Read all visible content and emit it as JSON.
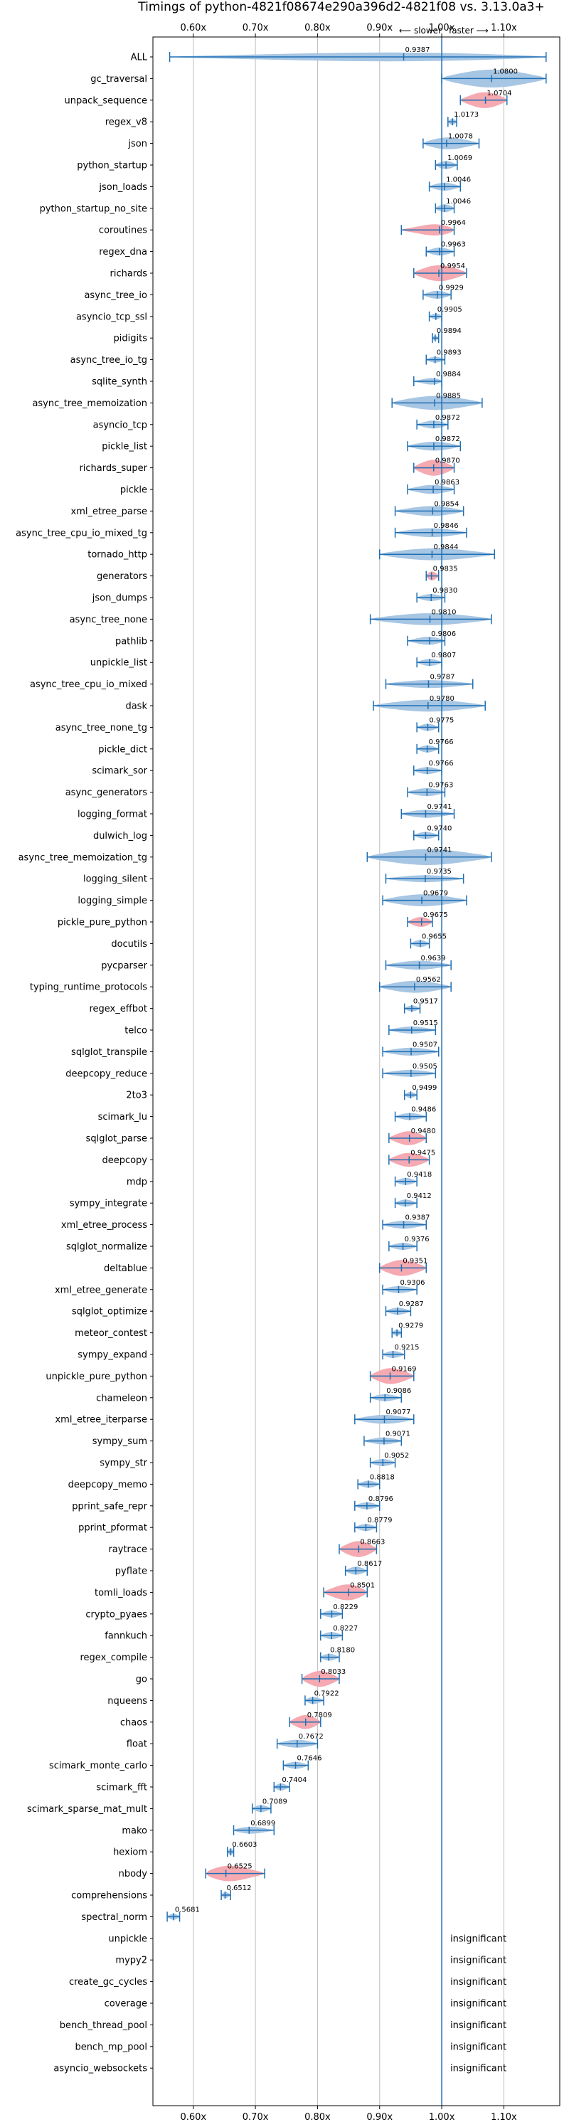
{
  "chart_data": {
    "type": "violin",
    "title": "Timings of python-4821f08674e290a396d2-4821f08 vs. 3.13.0a3+",
    "direction_left": "⟵ slower",
    "direction_right": "faster ⟶",
    "insignificant_label": "insignificant",
    "xlim": [
      0.535,
      1.19
    ],
    "xticks": [
      0.6,
      0.7,
      0.8,
      0.9,
      1.0,
      1.1
    ],
    "xtick_labels": [
      "0.60x",
      "0.70x",
      "0.80x",
      "0.90x",
      "1.00x",
      "1.10x"
    ],
    "colors": {
      "normal": "#a7c6e3",
      "highlight": "#f5a9b1",
      "axis": "#1f6fb4",
      "grid": "#bdbdbd"
    },
    "benchmarks": [
      {
        "name": "ALL",
        "value": 0.9387,
        "label": "0.9387",
        "low": 0.562,
        "high": 1.168,
        "width": 0.45,
        "highlight": false
      },
      {
        "name": "gc_traversal",
        "value": 1.08,
        "label": "1.0800",
        "low": 1.0,
        "high": 1.168,
        "width": 0.9,
        "highlight": false
      },
      {
        "name": "unpack_sequence",
        "value": 1.0704,
        "label": "1.0704",
        "low": 1.03,
        "high": 1.105,
        "width": 0.8,
        "highlight": true
      },
      {
        "name": "regex_v8",
        "value": 1.0173,
        "label": "1.0173",
        "low": 1.01,
        "high": 1.024,
        "width": 0.3,
        "highlight": false
      },
      {
        "name": "json",
        "value": 1.0078,
        "label": "1.0078",
        "low": 0.97,
        "high": 1.06,
        "width": 0.6,
        "highlight": false
      },
      {
        "name": "python_startup",
        "value": 1.0069,
        "label": "1.0069",
        "low": 0.99,
        "high": 1.025,
        "width": 0.4,
        "highlight": false
      },
      {
        "name": "json_loads",
        "value": 1.0046,
        "label": "1.0046",
        "low": 0.98,
        "high": 1.03,
        "width": 0.4,
        "highlight": false
      },
      {
        "name": "python_startup_no_site",
        "value": 1.0046,
        "label": "1.0046",
        "low": 0.99,
        "high": 1.02,
        "width": 0.4,
        "highlight": false
      },
      {
        "name": "coroutines",
        "value": 0.9964,
        "label": "0.9964",
        "low": 0.935,
        "high": 1.02,
        "width": 0.6,
        "highlight": true
      },
      {
        "name": "regex_dna",
        "value": 0.9963,
        "label": "0.9963",
        "low": 0.975,
        "high": 1.02,
        "width": 0.4,
        "highlight": false
      },
      {
        "name": "richards",
        "value": 0.9954,
        "label": "0.9954",
        "low": 0.955,
        "high": 1.04,
        "width": 0.8,
        "highlight": true
      },
      {
        "name": "async_tree_io",
        "value": 0.9929,
        "label": "0.9929",
        "low": 0.97,
        "high": 1.015,
        "width": 0.4,
        "highlight": false
      },
      {
        "name": "asyncio_tcp_ssl",
        "value": 0.9905,
        "label": "0.9905",
        "low": 0.98,
        "high": 1.0,
        "width": 0.3,
        "highlight": false
      },
      {
        "name": "pidigits",
        "value": 0.9894,
        "label": "0.9894",
        "low": 0.985,
        "high": 0.995,
        "width": 0.25,
        "highlight": false
      },
      {
        "name": "async_tree_io_tg",
        "value": 0.9893,
        "label": "0.9893",
        "low": 0.975,
        "high": 1.005,
        "width": 0.3,
        "highlight": false
      },
      {
        "name": "sqlite_synth",
        "value": 0.9884,
        "label": "0.9884",
        "low": 0.955,
        "high": 1.0,
        "width": 0.35,
        "highlight": false
      },
      {
        "name": "async_tree_memoization",
        "value": 0.9885,
        "label": "0.9885",
        "low": 0.92,
        "high": 1.065,
        "width": 0.7,
        "highlight": false
      },
      {
        "name": "asyncio_tcp",
        "value": 0.9872,
        "label": "0.9872",
        "low": 0.96,
        "high": 1.01,
        "width": 0.4,
        "highlight": false
      },
      {
        "name": "pickle_list",
        "value": 0.9872,
        "label": "0.9872",
        "low": 0.945,
        "high": 1.03,
        "width": 0.45,
        "highlight": false
      },
      {
        "name": "richards_super",
        "value": 0.987,
        "label": "0.9870",
        "low": 0.955,
        "high": 1.02,
        "width": 0.8,
        "highlight": true
      },
      {
        "name": "pickle",
        "value": 0.9863,
        "label": "0.9863",
        "low": 0.945,
        "high": 1.02,
        "width": 0.45,
        "highlight": false
      },
      {
        "name": "xml_etree_parse",
        "value": 0.9854,
        "label": "0.9854",
        "low": 0.925,
        "high": 1.035,
        "width": 0.5,
        "highlight": false
      },
      {
        "name": "async_tree_cpu_io_mixed_tg",
        "value": 0.9846,
        "label": "0.9846",
        "low": 0.925,
        "high": 1.04,
        "width": 0.45,
        "highlight": false
      },
      {
        "name": "tornado_http",
        "value": 0.9844,
        "label": "0.9844",
        "low": 0.9,
        "high": 1.085,
        "width": 0.6,
        "highlight": false
      },
      {
        "name": "generators",
        "value": 0.9835,
        "label": "0.9835",
        "low": 0.975,
        "high": 0.995,
        "width": 0.45,
        "highlight": true
      },
      {
        "name": "json_dumps",
        "value": 0.983,
        "label": "0.9830",
        "low": 0.96,
        "high": 1.005,
        "width": 0.35,
        "highlight": false
      },
      {
        "name": "async_tree_none",
        "value": 0.981,
        "label": "0.9810",
        "low": 0.885,
        "high": 1.08,
        "width": 0.6,
        "highlight": false
      },
      {
        "name": "pathlib",
        "value": 0.9806,
        "label": "0.9806",
        "low": 0.945,
        "high": 1.005,
        "width": 0.4,
        "highlight": false
      },
      {
        "name": "unpickle_list",
        "value": 0.9807,
        "label": "0.9807",
        "low": 0.96,
        "high": 1.0,
        "width": 0.35,
        "highlight": false
      },
      {
        "name": "async_tree_cpu_io_mixed",
        "value": 0.9787,
        "label": "0.9787",
        "low": 0.91,
        "high": 1.05,
        "width": 0.4,
        "highlight": false
      },
      {
        "name": "dask",
        "value": 0.978,
        "label": "0.9780",
        "low": 0.89,
        "high": 1.07,
        "width": 0.6,
        "highlight": false
      },
      {
        "name": "async_tree_none_tg",
        "value": 0.9775,
        "label": "0.9775",
        "low": 0.96,
        "high": 0.995,
        "width": 0.35,
        "highlight": false
      },
      {
        "name": "pickle_dict",
        "value": 0.9766,
        "label": "0.9766",
        "low": 0.96,
        "high": 0.995,
        "width": 0.35,
        "highlight": false
      },
      {
        "name": "scimark_sor",
        "value": 0.9766,
        "label": "0.9766",
        "low": 0.955,
        "high": 1.0,
        "width": 0.35,
        "highlight": false
      },
      {
        "name": "async_generators",
        "value": 0.9763,
        "label": "0.9763",
        "low": 0.945,
        "high": 1.005,
        "width": 0.4,
        "highlight": false
      },
      {
        "name": "logging_format",
        "value": 0.9741,
        "label": "0.9741",
        "low": 0.935,
        "high": 1.02,
        "width": 0.4,
        "highlight": false
      },
      {
        "name": "dulwich_log",
        "value": 0.974,
        "label": "0.9740",
        "low": 0.955,
        "high": 0.995,
        "width": 0.35,
        "highlight": false
      },
      {
        "name": "async_tree_memoization_tg",
        "value": 0.9741,
        "label": "0.9741",
        "low": 0.88,
        "high": 1.08,
        "width": 0.8,
        "highlight": false
      },
      {
        "name": "logging_silent",
        "value": 0.9735,
        "label": "0.9735",
        "low": 0.91,
        "high": 1.035,
        "width": 0.35,
        "highlight": false
      },
      {
        "name": "logging_simple",
        "value": 0.9679,
        "label": "0.9679",
        "low": 0.905,
        "high": 1.04,
        "width": 0.6,
        "highlight": false
      },
      {
        "name": "pickle_pure_python",
        "value": 0.9675,
        "label": "0.9675",
        "low": 0.945,
        "high": 0.985,
        "width": 0.5,
        "highlight": true
      },
      {
        "name": "docutils",
        "value": 0.9655,
        "label": "0.9655",
        "low": 0.95,
        "high": 0.98,
        "width": 0.35,
        "highlight": false
      },
      {
        "name": "pycparser",
        "value": 0.9639,
        "label": "0.9639",
        "low": 0.91,
        "high": 1.015,
        "width": 0.45,
        "highlight": false
      },
      {
        "name": "typing_runtime_protocols",
        "value": 0.9562,
        "label": "0.9562",
        "low": 0.9,
        "high": 1.015,
        "width": 0.6,
        "highlight": false
      },
      {
        "name": "regex_effbot",
        "value": 0.9517,
        "label": "0.9517",
        "low": 0.94,
        "high": 0.965,
        "width": 0.3,
        "highlight": false
      },
      {
        "name": "telco",
        "value": 0.9515,
        "label": "0.9515",
        "low": 0.915,
        "high": 0.99,
        "width": 0.35,
        "highlight": false
      },
      {
        "name": "sqlglot_transpile",
        "value": 0.9507,
        "label": "0.9507",
        "low": 0.905,
        "high": 0.995,
        "width": 0.4,
        "highlight": false
      },
      {
        "name": "deepcopy_reduce",
        "value": 0.9505,
        "label": "0.9505",
        "low": 0.905,
        "high": 0.99,
        "width": 0.35,
        "highlight": false
      },
      {
        "name": "2to3",
        "value": 0.9499,
        "label": "0.9499",
        "low": 0.94,
        "high": 0.96,
        "width": 0.3,
        "highlight": false
      },
      {
        "name": "scimark_lu",
        "value": 0.9486,
        "label": "0.9486",
        "low": 0.925,
        "high": 0.975,
        "width": 0.35,
        "highlight": false
      },
      {
        "name": "sqlglot_parse",
        "value": 0.948,
        "label": "0.9480",
        "low": 0.915,
        "high": 0.975,
        "width": 0.7,
        "highlight": true
      },
      {
        "name": "deepcopy",
        "value": 0.9475,
        "label": "0.9475",
        "low": 0.915,
        "high": 0.98,
        "width": 0.7,
        "highlight": true
      },
      {
        "name": "mdp",
        "value": 0.9418,
        "label": "0.9418",
        "low": 0.925,
        "high": 0.96,
        "width": 0.35,
        "highlight": false
      },
      {
        "name": "sympy_integrate",
        "value": 0.9412,
        "label": "0.9412",
        "low": 0.925,
        "high": 0.96,
        "width": 0.35,
        "highlight": false
      },
      {
        "name": "xml_etree_process",
        "value": 0.9387,
        "label": "0.9387",
        "low": 0.905,
        "high": 0.975,
        "width": 0.4,
        "highlight": false
      },
      {
        "name": "sqlglot_normalize",
        "value": 0.9376,
        "label": "0.9376",
        "low": 0.915,
        "high": 0.96,
        "width": 0.35,
        "highlight": false
      },
      {
        "name": "deltablue",
        "value": 0.9351,
        "label": "0.9351",
        "low": 0.9,
        "high": 0.975,
        "width": 0.8,
        "highlight": true
      },
      {
        "name": "xml_etree_generate",
        "value": 0.9306,
        "label": "0.9306",
        "low": 0.905,
        "high": 0.96,
        "width": 0.35,
        "highlight": false
      },
      {
        "name": "sqlglot_optimize",
        "value": 0.9287,
        "label": "0.9287",
        "low": 0.91,
        "high": 0.95,
        "width": 0.35,
        "highlight": false
      },
      {
        "name": "meteor_contest",
        "value": 0.9279,
        "label": "0.9279",
        "low": 0.92,
        "high": 0.935,
        "width": 0.3,
        "highlight": false
      },
      {
        "name": "sympy_expand",
        "value": 0.9215,
        "label": "0.9215",
        "low": 0.905,
        "high": 0.94,
        "width": 0.35,
        "highlight": false
      },
      {
        "name": "unpickle_pure_python",
        "value": 0.9169,
        "label": "0.9169",
        "low": 0.885,
        "high": 0.955,
        "width": 0.8,
        "highlight": true
      },
      {
        "name": "chameleon",
        "value": 0.9086,
        "label": "0.9086",
        "low": 0.885,
        "high": 0.935,
        "width": 0.35,
        "highlight": false
      },
      {
        "name": "xml_etree_iterparse",
        "value": 0.9077,
        "label": "0.9077",
        "low": 0.86,
        "high": 0.955,
        "width": 0.45,
        "highlight": false
      },
      {
        "name": "sympy_sum",
        "value": 0.9071,
        "label": "0.9071",
        "low": 0.875,
        "high": 0.935,
        "width": 0.35,
        "highlight": false
      },
      {
        "name": "sympy_str",
        "value": 0.9052,
        "label": "0.9052",
        "low": 0.885,
        "high": 0.925,
        "width": 0.35,
        "highlight": false
      },
      {
        "name": "deepcopy_memo",
        "value": 0.8818,
        "label": "0.8818",
        "low": 0.865,
        "high": 0.9,
        "width": 0.35,
        "highlight": false
      },
      {
        "name": "pprint_safe_repr",
        "value": 0.8796,
        "label": "0.8796",
        "low": 0.86,
        "high": 0.9,
        "width": 0.35,
        "highlight": false
      },
      {
        "name": "pprint_pformat",
        "value": 0.8779,
        "label": "0.8779",
        "low": 0.86,
        "high": 0.895,
        "width": 0.35,
        "highlight": false
      },
      {
        "name": "raytrace",
        "value": 0.8663,
        "label": "0.8663",
        "low": 0.835,
        "high": 0.895,
        "width": 0.8,
        "highlight": true
      },
      {
        "name": "pyflate",
        "value": 0.8617,
        "label": "0.8617",
        "low": 0.845,
        "high": 0.88,
        "width": 0.4,
        "highlight": false
      },
      {
        "name": "tomli_loads",
        "value": 0.8501,
        "label": "0.8501",
        "low": 0.81,
        "high": 0.88,
        "width": 0.8,
        "highlight": true
      },
      {
        "name": "crypto_pyaes",
        "value": 0.8229,
        "label": "0.8229",
        "low": 0.805,
        "high": 0.84,
        "width": 0.35,
        "highlight": false
      },
      {
        "name": "fannkuch",
        "value": 0.8227,
        "label": "0.8227",
        "low": 0.805,
        "high": 0.84,
        "width": 0.35,
        "highlight": false
      },
      {
        "name": "regex_compile",
        "value": 0.818,
        "label": "0.8180",
        "low": 0.805,
        "high": 0.835,
        "width": 0.35,
        "highlight": false
      },
      {
        "name": "go",
        "value": 0.8033,
        "label": "0.8033",
        "low": 0.775,
        "high": 0.835,
        "width": 0.8,
        "highlight": true
      },
      {
        "name": "nqueens",
        "value": 0.7922,
        "label": "0.7922",
        "low": 0.78,
        "high": 0.81,
        "width": 0.35,
        "highlight": false
      },
      {
        "name": "chaos",
        "value": 0.7809,
        "label": "0.7809",
        "low": 0.755,
        "high": 0.805,
        "width": 0.7,
        "highlight": true
      },
      {
        "name": "float",
        "value": 0.7672,
        "label": "0.7672",
        "low": 0.735,
        "high": 0.8,
        "width": 0.4,
        "highlight": false
      },
      {
        "name": "scimark_monte_carlo",
        "value": 0.7646,
        "label": "0.7646",
        "low": 0.745,
        "high": 0.785,
        "width": 0.35,
        "highlight": false
      },
      {
        "name": "scimark_fft",
        "value": 0.7404,
        "label": "0.7404",
        "low": 0.73,
        "high": 0.755,
        "width": 0.35,
        "highlight": false
      },
      {
        "name": "scimark_sparse_mat_mult",
        "value": 0.7089,
        "label": "0.7089",
        "low": 0.695,
        "high": 0.725,
        "width": 0.35,
        "highlight": false
      },
      {
        "name": "mako",
        "value": 0.6899,
        "label": "0.6899",
        "low": 0.665,
        "high": 0.73,
        "width": 0.35,
        "highlight": false
      },
      {
        "name": "hexiom",
        "value": 0.6603,
        "label": "0.6603",
        "low": 0.655,
        "high": 0.665,
        "width": 0.3,
        "highlight": false
      },
      {
        "name": "nbody",
        "value": 0.6525,
        "label": "0.6525",
        "low": 0.62,
        "high": 0.715,
        "width": 0.8,
        "highlight": true
      },
      {
        "name": "comprehensions",
        "value": 0.6512,
        "label": "0.6512",
        "low": 0.645,
        "high": 0.66,
        "width": 0.3,
        "highlight": false
      },
      {
        "name": "spectral_norm",
        "value": 0.5681,
        "label": "0.5681",
        "low": 0.558,
        "high": 0.578,
        "width": 0.3,
        "highlight": false
      },
      {
        "name": "unpickle",
        "insignificant": true
      },
      {
        "name": "mypy2",
        "insignificant": true
      },
      {
        "name": "create_gc_cycles",
        "insignificant": true
      },
      {
        "name": "coverage",
        "insignificant": true
      },
      {
        "name": "bench_thread_pool",
        "insignificant": true
      },
      {
        "name": "bench_mp_pool",
        "insignificant": true
      },
      {
        "name": "asyncio_websockets",
        "insignificant": true
      }
    ]
  }
}
